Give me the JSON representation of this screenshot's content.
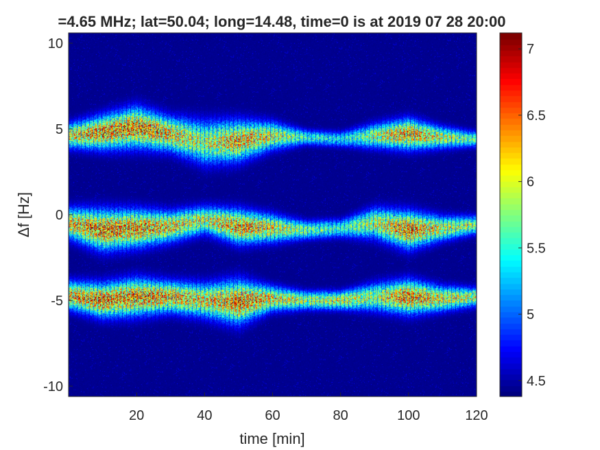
{
  "chart_data": {
    "type": "heatmap",
    "title": "=4.65 MHz;  lat=50.04; long=14.48, time=0 is at 2019 07 28 20:00",
    "xlabel": "time [min]",
    "ylabel": "Δf [Hz]",
    "xlim": [
      0,
      120
    ],
    "ylim": [
      -10.6,
      10.6
    ],
    "x_ticks": [
      20,
      40,
      60,
      80,
      100,
      120
    ],
    "y_ticks": [
      -10,
      -5,
      0,
      5,
      10
    ],
    "colorbar": {
      "range": [
        4.38,
        7.12
      ],
      "ticks": [
        4.5,
        5,
        5.5,
        6,
        6.5,
        7
      ],
      "colormap": "jet"
    },
    "background_level": 4.4,
    "bands": [
      {
        "name": "upper",
        "points": [
          {
            "t": 0,
            "center": 4.6,
            "halfwidth": 0.8,
            "peak": 6.5
          },
          {
            "t": 10,
            "center": 4.8,
            "halfwidth": 1.1,
            "peak": 6.9
          },
          {
            "t": 20,
            "center": 5.1,
            "halfwidth": 1.3,
            "peak": 7.0
          },
          {
            "t": 30,
            "center": 4.7,
            "halfwidth": 1.1,
            "peak": 6.7
          },
          {
            "t": 40,
            "center": 4.2,
            "halfwidth": 1.4,
            "peak": 6.2
          },
          {
            "t": 50,
            "center": 4.3,
            "halfwidth": 1.3,
            "peak": 6.8
          },
          {
            "t": 60,
            "center": 4.6,
            "halfwidth": 0.9,
            "peak": 6.4
          },
          {
            "t": 70,
            "center": 4.5,
            "halfwidth": 0.5,
            "peak": 5.8
          },
          {
            "t": 80,
            "center": 4.4,
            "halfwidth": 0.5,
            "peak": 5.6
          },
          {
            "t": 90,
            "center": 4.6,
            "halfwidth": 0.8,
            "peak": 6.2
          },
          {
            "t": 100,
            "center": 4.7,
            "halfwidth": 1.0,
            "peak": 6.9
          },
          {
            "t": 110,
            "center": 4.5,
            "halfwidth": 0.7,
            "peak": 6.3
          },
          {
            "t": 120,
            "center": 4.4,
            "halfwidth": 0.5,
            "peak": 5.9
          }
        ]
      },
      {
        "name": "middle",
        "points": [
          {
            "t": 0,
            "center": -0.5,
            "halfwidth": 1.0,
            "peak": 6.6
          },
          {
            "t": 10,
            "center": -0.9,
            "halfwidth": 1.3,
            "peak": 7.0
          },
          {
            "t": 20,
            "center": -0.8,
            "halfwidth": 1.2,
            "peak": 6.9
          },
          {
            "t": 30,
            "center": -0.7,
            "halfwidth": 1.0,
            "peak": 6.6
          },
          {
            "t": 40,
            "center": -0.3,
            "halfwidth": 0.9,
            "peak": 6.3
          },
          {
            "t": 50,
            "center": -0.7,
            "halfwidth": 1.1,
            "peak": 6.9
          },
          {
            "t": 60,
            "center": -0.8,
            "halfwidth": 0.9,
            "peak": 6.5
          },
          {
            "t": 70,
            "center": -0.9,
            "halfwidth": 0.6,
            "peak": 6.0
          },
          {
            "t": 80,
            "center": -0.8,
            "halfwidth": 0.6,
            "peak": 5.8
          },
          {
            "t": 90,
            "center": -0.5,
            "halfwidth": 1.0,
            "peak": 6.3
          },
          {
            "t": 100,
            "center": -0.9,
            "halfwidth": 1.2,
            "peak": 7.0
          },
          {
            "t": 110,
            "center": -0.8,
            "halfwidth": 0.8,
            "peak": 6.4
          },
          {
            "t": 120,
            "center": -0.6,
            "halfwidth": 0.6,
            "peak": 6.1
          }
        ]
      },
      {
        "name": "lower",
        "points": [
          {
            "t": 0,
            "center": -4.7,
            "halfwidth": 0.9,
            "peak": 6.7
          },
          {
            "t": 10,
            "center": -5.0,
            "halfwidth": 1.1,
            "peak": 7.0
          },
          {
            "t": 20,
            "center": -4.8,
            "halfwidth": 1.2,
            "peak": 6.9
          },
          {
            "t": 30,
            "center": -4.8,
            "halfwidth": 1.0,
            "peak": 6.8
          },
          {
            "t": 40,
            "center": -5.0,
            "halfwidth": 1.1,
            "peak": 6.5
          },
          {
            "t": 50,
            "center": -5.1,
            "halfwidth": 1.4,
            "peak": 7.0
          },
          {
            "t": 60,
            "center": -4.9,
            "halfwidth": 0.8,
            "peak": 6.6
          },
          {
            "t": 70,
            "center": -5.0,
            "halfwidth": 0.6,
            "peak": 6.2
          },
          {
            "t": 80,
            "center": -5.0,
            "halfwidth": 0.6,
            "peak": 6.4
          },
          {
            "t": 90,
            "center": -4.8,
            "halfwidth": 0.9,
            "peak": 6.2
          },
          {
            "t": 100,
            "center": -4.8,
            "halfwidth": 1.1,
            "peak": 7.0
          },
          {
            "t": 110,
            "center": -4.9,
            "halfwidth": 0.8,
            "peak": 6.5
          },
          {
            "t": 120,
            "center": -4.8,
            "halfwidth": 0.6,
            "peak": 6.3
          }
        ]
      }
    ],
    "vertical_striping": {
      "from_t": 0,
      "to_t": 120,
      "period_min": 1
    }
  }
}
